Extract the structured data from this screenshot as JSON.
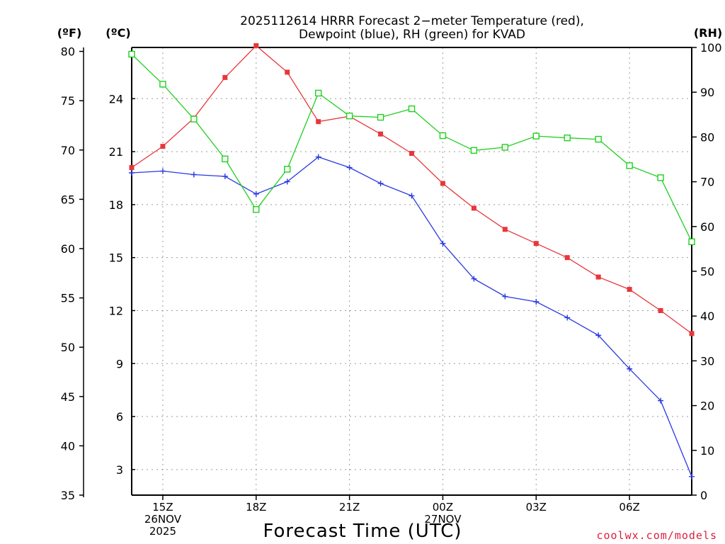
{
  "chart_data": {
    "type": "line",
    "title_line1": "2025112614 HRRR Forecast 2−meter Temperature (red),",
    "title_line2": "Dewpoint (blue), RH (green) for KVAD",
    "xlabel": "Forecast Time (UTC)",
    "unit_labels": {
      "fahrenheit": "(ºF)",
      "celsius": "(ºC)",
      "rh": "(RH)"
    },
    "x_hours": [
      14,
      15,
      16,
      17,
      18,
      19,
      20,
      21,
      22,
      23,
      24,
      25,
      26,
      27,
      28,
      29,
      30,
      31,
      32
    ],
    "x_range": [
      14,
      32
    ],
    "x_ticks": [
      {
        "hour": 15,
        "lines": [
          "15Z",
          "26NOV",
          "2025"
        ]
      },
      {
        "hour": 18,
        "lines": [
          "18Z"
        ]
      },
      {
        "hour": 21,
        "lines": [
          "21Z"
        ]
      },
      {
        "hour": 24,
        "lines": [
          "00Z",
          "27NOV"
        ]
      },
      {
        "hour": 27,
        "lines": [
          "03Z"
        ]
      },
      {
        "hour": 30,
        "lines": [
          "06Z"
        ]
      }
    ],
    "celsius_axis": {
      "range": [
        1.55,
        26.9
      ],
      "ticks": [
        3,
        6,
        9,
        12,
        15,
        18,
        21,
        24
      ]
    },
    "fahrenheit_axis": {
      "range": [
        35,
        80.4
      ],
      "ticks": [
        35,
        40,
        45,
        50,
        55,
        60,
        65,
        70,
        75,
        80
      ]
    },
    "rh_axis": {
      "range": [
        0,
        100
      ],
      "ticks": [
        0,
        10,
        20,
        30,
        40,
        50,
        60,
        70,
        80,
        90,
        100
      ]
    },
    "series": [
      {
        "name": "Temperature",
        "units": "C",
        "color": "#e8363b",
        "marker": "filled-square",
        "values": [
          20.1,
          21.3,
          22.9,
          25.2,
          27.0,
          25.5,
          22.7,
          23.0,
          22.0,
          20.9,
          19.2,
          17.8,
          16.6,
          15.8,
          15.0,
          13.9,
          13.2,
          12.0,
          10.7
        ]
      },
      {
        "name": "Dewpoint",
        "units": "C",
        "color": "#2a39e2",
        "marker": "plus",
        "values": [
          19.8,
          19.9,
          19.7,
          19.6,
          18.6,
          19.3,
          20.7,
          20.1,
          19.2,
          18.5,
          15.8,
          13.8,
          12.8,
          12.5,
          11.6,
          10.6,
          8.7,
          6.9,
          2.6
        ]
      },
      {
        "name": "RH",
        "units": "%",
        "color": "#20d020",
        "marker": "open-square",
        "values": [
          98.5,
          91.8,
          84.0,
          75.1,
          63.8,
          72.8,
          89.8,
          84.7,
          84.4,
          86.3,
          80.3,
          77.0,
          77.7,
          80.2,
          79.8,
          79.5,
          73.6,
          70.9,
          56.6
        ]
      }
    ],
    "grid": true,
    "credit": "coolwx.com/models",
    "credit_color": "#d81f3f"
  }
}
